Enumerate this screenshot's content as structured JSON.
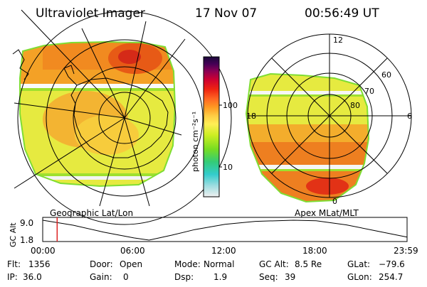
{
  "header": {
    "instrument": "Ultraviolet Imager",
    "date": "17 Nov 07",
    "time": "00:56:49 UT"
  },
  "colorbar": {
    "label": "photon cm⁻²s⁻¹",
    "ticks": [
      "100",
      "10"
    ],
    "scale": "log",
    "colors": [
      "#f0f0f0",
      "#9ddde0",
      "#33cccc",
      "#33cc77",
      "#77dd22",
      "#ccee22",
      "#ffee55",
      "#ffcc44",
      "#ff9922",
      "#ff6622",
      "#ee2211",
      "#cc0033",
      "#880055",
      "#440055",
      "#1a0a3a"
    ]
  },
  "left_map": {
    "projection_label": "Geographic Lat/Lon",
    "colors": {
      "fill": "#e8ec42",
      "band_top": "#f49a22",
      "band_hot": "#e84010",
      "grid": "#000000",
      "coast": "#000000"
    }
  },
  "right_map": {
    "projection_label": "Apex MLat/MLT",
    "mlt_labels": [
      "12",
      "18",
      "6",
      "0"
    ],
    "mlat_labels": [
      "60",
      "70",
      "80"
    ]
  },
  "altitude_plot": {
    "ylabel": "GC Alt",
    "yticks": [
      "9.0",
      "1.8"
    ],
    "xticks": [
      "00:00",
      "06:00",
      "12:00",
      "18:00",
      "23:59"
    ],
    "curve": [
      {
        "t": 0.0,
        "alt": 9.0
      },
      {
        "t": 2.0,
        "alt": 7.2
      },
      {
        "t": 4.0,
        "alt": 4.7
      },
      {
        "t": 6.0,
        "alt": 2.6
      },
      {
        "t": 7.0,
        "alt": 1.8
      },
      {
        "t": 8.5,
        "alt": 3.6
      },
      {
        "t": 10.0,
        "alt": 5.6
      },
      {
        "t": 12.0,
        "alt": 7.5
      },
      {
        "t": 14.0,
        "alt": 8.6
      },
      {
        "t": 16.5,
        "alt": 9.0
      },
      {
        "t": 18.0,
        "alt": 8.8
      },
      {
        "t": 20.0,
        "alt": 7.3
      },
      {
        "t": 22.0,
        "alt": 5.1
      },
      {
        "t": 23.98,
        "alt": 2.9
      }
    ],
    "marker_time": 0.95,
    "marker_color": "#dd2222"
  },
  "info": {
    "flt_label": "Flt:",
    "flt_value": "1356",
    "ip_label": "IP:",
    "ip_value": "36.0",
    "door_label": "Door:",
    "door_value": "Open",
    "gain_label": "Gain:",
    "gain_value": "0",
    "mode_label": "Mode:",
    "mode_value": "Normal",
    "dsp_label": "Dsp:",
    "dsp_value": "1.9",
    "gcalt_label": "GC Alt:",
    "gcalt_value": "8.5 Re",
    "seq_label": "Seq:",
    "seq_value": "39",
    "glat_label": "GLat:",
    "glat_value": "−79.6",
    "glon_label": "GLon:",
    "glon_value": "254.7"
  }
}
